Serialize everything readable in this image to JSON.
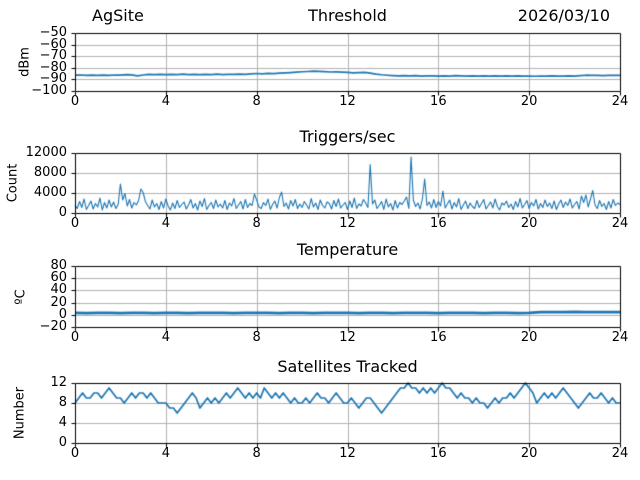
{
  "figure": {
    "background": "#ffffff",
    "line_color": "#1f77b4",
    "grid_color": "#b2b2b2",
    "spine_color": "#000000",
    "text_color": "#000000"
  },
  "chart_data": [
    {
      "type": "line",
      "title": "Threshold",
      "title_left": "AgSite",
      "title_right": "2026/03/10",
      "ylabel": "dBm",
      "xlim": [
        0,
        24
      ],
      "xticks": [
        0,
        4,
        8,
        12,
        16,
        20,
        24
      ],
      "xtick_labels": [
        "0",
        "4",
        "8",
        "12",
        "16",
        "20",
        "24"
      ],
      "ylim": [
        -100,
        -50
      ],
      "yticks": [
        -50,
        -60,
        -70,
        -80,
        -90,
        -100
      ],
      "ytick_labels": [
        "−50",
        "−60",
        "−70",
        "−80",
        "−90",
        "−100"
      ],
      "grid": true,
      "legend": "none",
      "x_start": 0,
      "x_step": 0.25,
      "values": [
        -86.4,
        -86.2,
        -86.5,
        -86.3,
        -86.6,
        -86.3,
        -86.5,
        -86.2,
        -86.3,
        -85.9,
        -86.1,
        -86.9,
        -86.2,
        -85.6,
        -85.9,
        -85.7,
        -85.9,
        -85.6,
        -85.8,
        -85.5,
        -85.8,
        -85.6,
        -85.9,
        -85.6,
        -85.8,
        -85.5,
        -85.8,
        -85.6,
        -85.7,
        -85.4,
        -85.7,
        -85.3,
        -84.9,
        -85.2,
        -84.8,
        -85.0,
        -84.6,
        -84.3,
        -84.1,
        -83.8,
        -83.4,
        -83.2,
        -82.9,
        -83.1,
        -83.3,
        -83.6,
        -83.5,
        -83.8,
        -84.0,
        -84.3,
        -84.1,
        -83.9,
        -84.6,
        -85.4,
        -86.0,
        -86.4,
        -86.7,
        -86.9,
        -86.8,
        -87.0,
        -86.8,
        -87.1,
        -86.9,
        -87.0,
        -87.2,
        -86.9,
        -87.1,
        -86.8,
        -87.0,
        -87.2,
        -86.9,
        -87.1,
        -87.0,
        -87.2,
        -87.0,
        -87.1,
        -86.9,
        -87.1,
        -87.0,
        -87.2,
        -87.1,
        -87.3,
        -87.1,
        -87.2,
        -87.0,
        -87.2,
        -87.1,
        -87.0,
        -87.1,
        -86.7,
        -86.4,
        -86.6,
        -86.5,
        -86.7,
        -86.5,
        -86.6,
        -86.5
      ]
    },
    {
      "type": "line",
      "title": "Triggers/sec",
      "ylabel": "Count",
      "xlim": [
        0,
        24
      ],
      "xticks": [
        0,
        4,
        8,
        12,
        16,
        20,
        24
      ],
      "xtick_labels": [
        "0",
        "4",
        "8",
        "12",
        "16",
        "20",
        "24"
      ],
      "ylim": [
        0,
        12000
      ],
      "yticks": [
        12000,
        8000,
        4000,
        0
      ],
      "ytick_labels": [
        "12000",
        "8000",
        "4000",
        "0"
      ],
      "grid": true,
      "legend": "none",
      "x_start": 0,
      "x_step": 0.1,
      "values": [
        1600,
        900,
        2300,
        1100,
        2800,
        700,
        1500,
        2400,
        800,
        1900,
        1200,
        3000,
        600,
        2100,
        1000,
        2600,
        1200,
        2200,
        900,
        1700,
        5800,
        2600,
        3900,
        1400,
        2700,
        1000,
        2100,
        1600,
        2500,
        4800,
        4100,
        2300,
        1500,
        800,
        2600,
        1200,
        1900,
        700,
        2300,
        1000,
        2800,
        1400,
        600,
        2000,
        900,
        2500,
        1100,
        1700,
        2200,
        800,
        1600,
        2700,
        1000,
        1900,
        600,
        2400,
        1300,
        2900,
        700,
        1500,
        2100,
        900,
        2600,
        1200,
        1800,
        1000,
        2500,
        700,
        2000,
        1400,
        2900,
        900,
        1600,
        2300,
        800,
        2700,
        1100,
        1900,
        1500,
        3800,
        2600,
        1200,
        900,
        2100,
        1500,
        2800,
        700,
        1700,
        2400,
        1000,
        3100,
        4200,
        1300,
        2000,
        800,
        2500,
        1400,
        2700,
        900,
        1800,
        1100,
        2300,
        1600,
        800,
        2900,
        1200,
        2000,
        700,
        2600,
        1500,
        1000,
        2200,
        1900,
        800,
        2500,
        1300,
        2800,
        1000,
        1600,
        2100,
        700,
        2400,
        1100,
        3000,
        900,
        1800,
        1400,
        2700,
        2000,
        1100,
        9700,
        1800,
        2600,
        900,
        1500,
        2300,
        700,
        2800,
        1200,
        1900,
        600,
        2500,
        1000,
        2100,
        1700,
        2400,
        3200,
        900,
        11200,
        2600,
        1300,
        2000,
        800,
        2900,
        6800,
        1500,
        2200,
        1000,
        2700,
        1100,
        2300,
        1400,
        4400,
        1000,
        1800,
        2600,
        800,
        2100,
        1200,
        2900,
        700,
        1600,
        2400,
        900,
        2000,
        1300,
        900,
        2500,
        1100,
        1900,
        2700,
        800,
        1500,
        2200,
        1000,
        2800,
        1300,
        600,
        2000,
        1600,
        2400,
        1100,
        1800,
        700,
        2300,
        1200,
        2900,
        1000,
        1700,
        2500,
        900,
        2100,
        1400,
        2700,
        800,
        1900,
        1100,
        2600,
        1300,
        2000,
        900,
        2400,
        700,
        1800,
        2600,
        1100,
        2200,
        1500,
        2800,
        1000,
        1700,
        2300,
        800,
        3400,
        2100,
        3600,
        1200,
        2800,
        4500,
        1600,
        900,
        2500,
        1300,
        1900,
        700,
        2300,
        1000,
        2700,
        1500,
        2000,
        1700
      ]
    },
    {
      "type": "line",
      "title": "Temperature",
      "ylabel": "ºC",
      "xlim": [
        0,
        24
      ],
      "xticks": [
        0,
        4,
        8,
        12,
        16,
        20,
        24
      ],
      "xtick_labels": [
        "0",
        "4",
        "8",
        "12",
        "16",
        "20",
        "24"
      ],
      "ylim": [
        -20,
        80
      ],
      "yticks": [
        80,
        60,
        40,
        20,
        0,
        -20
      ],
      "ytick_labels": [
        "80",
        "60",
        "40",
        "20",
        "0",
        "−20"
      ],
      "grid": true,
      "legend": "none",
      "x_start": 0,
      "x_step": 0.5,
      "values": [
        3.0,
        2.9,
        3.1,
        3.0,
        2.9,
        3.0,
        3.1,
        2.9,
        3.0,
        3.1,
        2.9,
        3.0,
        3.0,
        3.1,
        2.9,
        3.0,
        3.1,
        3.0,
        2.9,
        3.0,
        3.1,
        2.9,
        3.0,
        3.0,
        3.1,
        2.9,
        3.0,
        3.1,
        2.9,
        3.0,
        3.0,
        3.1,
        2.9,
        3.0,
        3.1,
        3.0,
        2.9,
        3.0,
        3.1,
        2.9,
        3.0,
        4.5,
        4.4,
        4.5,
        4.6,
        4.5,
        4.4,
        4.5,
        4.5
      ]
    },
    {
      "type": "line",
      "title": "Satellites Tracked",
      "ylabel": "Number",
      "xlim": [
        0,
        24
      ],
      "xticks": [
        0,
        4,
        8,
        12,
        16,
        20,
        24
      ],
      "xtick_labels": [
        "0",
        "4",
        "8",
        "12",
        "16",
        "20",
        "24"
      ],
      "ylim": [
        0,
        12
      ],
      "yticks": [
        12,
        8,
        4,
        0
      ],
      "ytick_labels": [
        "12",
        "8",
        "4",
        "0"
      ],
      "grid": true,
      "legend": "none",
      "x_start": 0,
      "x_step": 0.1666667,
      "values": [
        8,
        9,
        10,
        9,
        9,
        10,
        10,
        9,
        10,
        11,
        10,
        9,
        9,
        8,
        9,
        10,
        9,
        10,
        10,
        9,
        10,
        9,
        8,
        8,
        8,
        7,
        7,
        6,
        7,
        8,
        9,
        10,
        9,
        7,
        8,
        9,
        8,
        9,
        8,
        9,
        10,
        9,
        10,
        11,
        10,
        9,
        10,
        9,
        10,
        9,
        11,
        10,
        9,
        10,
        9,
        10,
        9,
        8,
        9,
        8,
        8,
        9,
        8,
        9,
        10,
        9,
        9,
        8,
        9,
        10,
        9,
        8,
        8,
        9,
        8,
        7,
        8,
        9,
        9,
        8,
        7,
        6,
        7,
        8,
        9,
        10,
        11,
        11,
        12,
        11,
        11,
        10,
        11,
        10,
        11,
        10,
        11,
        12,
        11,
        11,
        10,
        9,
        10,
        9,
        9,
        8,
        9,
        8,
        8,
        7,
        8,
        9,
        8,
        9,
        9,
        10,
        9,
        10,
        11,
        12,
        11,
        10,
        8,
        9,
        10,
        9,
        10,
        9,
        10,
        11,
        10,
        9,
        8,
        7,
        8,
        9,
        10,
        9,
        9,
        10,
        9,
        8,
        9,
        8,
        8
      ]
    }
  ]
}
